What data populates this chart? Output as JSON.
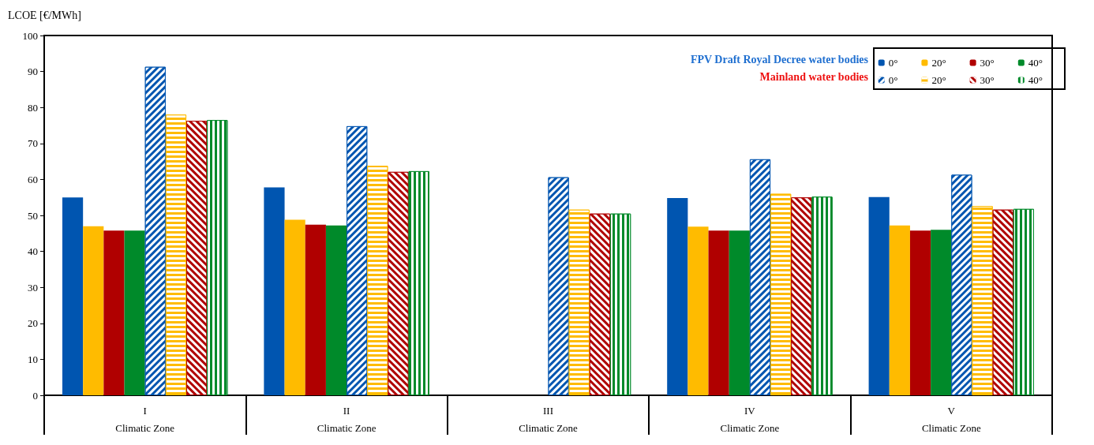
{
  "chart_data": {
    "type": "bar",
    "ylabel": "LCOE [€/MWh]",
    "xlabel": "Climatic Zone",
    "categories": [
      "I",
      "II",
      "III",
      "IV",
      "V"
    ],
    "ylim": [
      0,
      100
    ],
    "yticks": [
      0,
      10,
      20,
      30,
      40,
      50,
      60,
      70,
      80,
      90,
      100
    ],
    "legend": "top right",
    "grid": false,
    "annotations": [
      "FPV Draft Royal Decree water bodies",
      "Mainland water bodies"
    ],
    "series": [
      {
        "name": "0°",
        "color": "#0055b0",
        "values": [
          55,
          57.8,
          null,
          54.8,
          55.1
        ]
      },
      {
        "name": "20°",
        "color": "#ffbb00",
        "values": [
          47,
          48.8,
          null,
          46.9,
          47.2
        ]
      },
      {
        "name": "30°",
        "color": "#b00000",
        "values": [
          45.8,
          47.4,
          null,
          45.8,
          45.8
        ]
      },
      {
        "name": "40°",
        "color": "#008a2a",
        "values": [
          45.8,
          47.2,
          null,
          45.8,
          46
        ]
      },
      {
        "name": "0°",
        "color": "#0055b0",
        "values": [
          91.3,
          74.8,
          60.6,
          65.6,
          61.3
        ]
      },
      {
        "name": "20°",
        "color": "#ffbb00",
        "values": [
          78,
          63.8,
          51.6,
          56,
          52.6
        ]
      },
      {
        "name": "30°",
        "color": "#b00000",
        "values": [
          76.3,
          62.1,
          50.5,
          55,
          51.6
        ]
      },
      {
        "name": "40°",
        "color": "#008a2a",
        "values": [
          76.5,
          62.3,
          50.5,
          55.2,
          51.8
        ]
      }
    ]
  }
}
